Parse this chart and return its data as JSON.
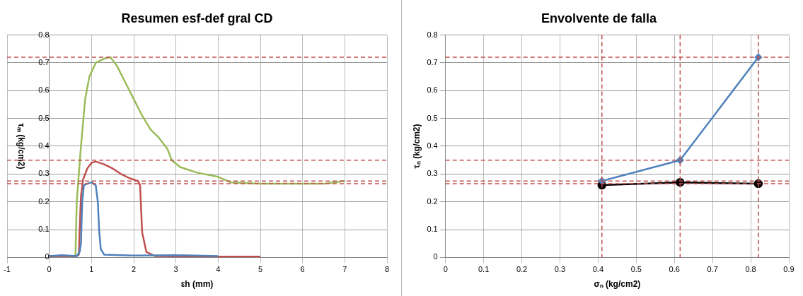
{
  "chart_data": [
    {
      "type": "line",
      "title": "Resumen esf-def gral CD",
      "xlabel": "εh (mm)",
      "ylabel": "τₘ (kg/cm2)",
      "xlim": [
        -1,
        8
      ],
      "xticks": [
        -1,
        0,
        1,
        2,
        3,
        4,
        5,
        6,
        7,
        8
      ],
      "ylim": [
        0,
        0.8
      ],
      "yticks": [
        0,
        0.1,
        0.2,
        0.3,
        0.4,
        0.5,
        0.6,
        0.7,
        0.8
      ],
      "grid": true,
      "legend": false,
      "marker": "none",
      "series": [
        {
          "color": "#4f81bd",
          "x": [
            0,
            0.3,
            0.65,
            0.72,
            0.75,
            0.78,
            0.82,
            0.9,
            1.0,
            1.1,
            1.15,
            1.18,
            1.22,
            1.3,
            2,
            3,
            4
          ],
          "values": [
            0.005,
            0.008,
            0.005,
            0.02,
            0.05,
            0.2,
            0.26,
            0.265,
            0.27,
            0.26,
            0.2,
            0.1,
            0.03,
            0.01,
            0.007,
            0.008,
            0.005
          ]
        },
        {
          "color": "#c0504d",
          "x": [
            0,
            0.65,
            0.7,
            0.72,
            0.75,
            0.8,
            0.9,
            1.0,
            1.1,
            1.3,
            1.5,
            1.7,
            1.9,
            2.1,
            2.15,
            2.2,
            2.3,
            2.5,
            3,
            4,
            4.5,
            5
          ],
          "values": [
            0.005,
            0.005,
            0.01,
            0.1,
            0.22,
            0.28,
            0.32,
            0.34,
            0.345,
            0.335,
            0.32,
            0.3,
            0.285,
            0.275,
            0.26,
            0.09,
            0.02,
            0.005,
            0.004,
            0.003,
            0.003,
            0.003
          ]
        },
        {
          "color": "#9bbb59",
          "x": [
            0,
            0.62,
            0.65,
            0.75,
            0.85,
            0.95,
            1.1,
            1.3,
            1.45,
            1.6,
            1.8,
            2.0,
            2.2,
            2.4,
            2.6,
            2.8,
            2.9,
            3.1,
            3.5,
            4,
            4.3,
            5,
            6,
            6.5,
            7
          ],
          "values": [
            0.005,
            0.005,
            0.2,
            0.4,
            0.57,
            0.65,
            0.7,
            0.715,
            0.72,
            0.69,
            0.63,
            0.57,
            0.51,
            0.46,
            0.43,
            0.39,
            0.35,
            0.325,
            0.305,
            0.29,
            0.27,
            0.265,
            0.265,
            0.265,
            0.275
          ]
        }
      ],
      "ref_lines": [
        {
          "axis": "y",
          "value": 0.72,
          "color": "#c0504d",
          "line_style": "dashed"
        },
        {
          "axis": "y",
          "value": 0.35,
          "color": "#c0504d",
          "line_style": "dashed"
        },
        {
          "axis": "y",
          "value": 0.275,
          "color": "#c0504d",
          "line_style": "dashed"
        },
        {
          "axis": "y",
          "value": 0.265,
          "color": "#c0504d",
          "line_style": "dashed"
        }
      ]
    },
    {
      "type": "line",
      "title": "Envolvente de falla",
      "xlabel": "σₙ (kg/cm2)",
      "ylabel": "τₙ (kg/cm2)",
      "xlim": [
        0,
        0.9
      ],
      "xticks": [
        0,
        0.1,
        0.2,
        0.3,
        0.4,
        0.5,
        0.6,
        0.7,
        0.8,
        0.9
      ],
      "ylim": [
        0,
        0.8
      ],
      "yticks": [
        0,
        0.1,
        0.2,
        0.3,
        0.4,
        0.5,
        0.6,
        0.7,
        0.8
      ],
      "grid": true,
      "legend": false,
      "series": [
        {
          "color": "#4f81bd",
          "marker": "diamond",
          "x": [
            0.41,
            0.615,
            0.82
          ],
          "values": [
            0.275,
            0.35,
            0.72
          ]
        },
        {
          "color": "#000000",
          "marker": "circle",
          "x": [
            0.41,
            0.615,
            0.82
          ],
          "values": [
            0.26,
            0.27,
            0.265
          ]
        }
      ],
      "ref_lines": [
        {
          "axis": "y",
          "value": 0.72,
          "color": "#c0504d",
          "line_style": "dashed"
        },
        {
          "axis": "y",
          "value": 0.35,
          "color": "#c0504d",
          "line_style": "dashed"
        },
        {
          "axis": "y",
          "value": 0.275,
          "color": "#c0504d",
          "line_style": "dashed"
        },
        {
          "axis": "y",
          "value": 0.265,
          "color": "#c0504d",
          "line_style": "dashed"
        },
        {
          "axis": "x",
          "value": 0.41,
          "color": "#c0504d",
          "line_style": "dashed"
        },
        {
          "axis": "x",
          "value": 0.615,
          "color": "#c0504d",
          "line_style": "dashed"
        },
        {
          "axis": "x",
          "value": 0.82,
          "color": "#c0504d",
          "line_style": "dashed"
        }
      ]
    }
  ]
}
